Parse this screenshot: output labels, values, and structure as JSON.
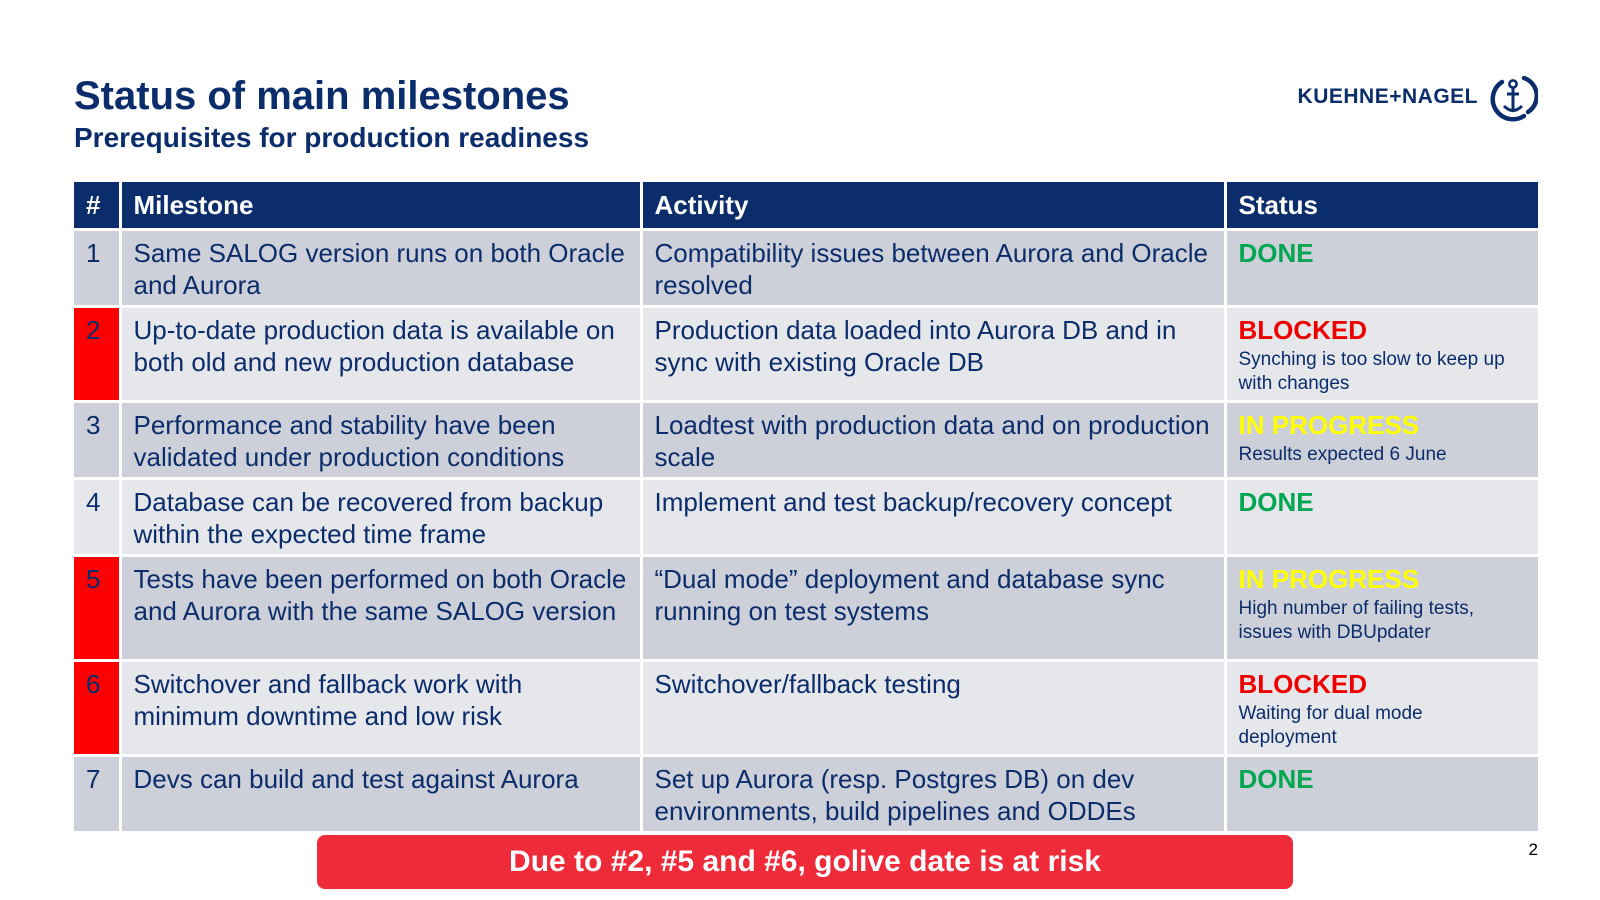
{
  "header": {
    "title": "Status of main milestones",
    "subtitle": "Prerequisites for production readiness",
    "logo_text": "KUEHNE+NAGEL"
  },
  "table": {
    "columns": [
      "#",
      "Milestone",
      "Activity",
      "Status"
    ],
    "rows": [
      {
        "num": "1",
        "milestone": "Same SALOG version runs on both Oracle and Aurora",
        "activity": "Compatibility issues between Aurora and Oracle resolved",
        "status": "DONE",
        "note": "",
        "at_risk": false
      },
      {
        "num": "2",
        "milestone": "Up-to-date production data is available on both old and new production database",
        "activity": "Production data loaded into Aurora DB and in sync with existing Oracle DB",
        "status": "BLOCKED",
        "note": "Synching is too slow to keep up with changes",
        "at_risk": true
      },
      {
        "num": "3",
        "milestone": "Performance and stability have been validated under production conditions",
        "activity": "Loadtest with production data and on production scale",
        "status": "IN PROGRESS",
        "note": "Results expected 6 June",
        "at_risk": false
      },
      {
        "num": "4",
        "milestone": "Database can be recovered from backup within the expected time frame",
        "activity": "Implement and test backup/recovery concept",
        "status": "DONE",
        "note": "",
        "at_risk": false
      },
      {
        "num": "5",
        "milestone": "Tests have been performed on both Oracle and Aurora with the same SALOG version",
        "activity": "“Dual mode” deployment and database sync running on test systems",
        "status": "IN PROGRESS",
        "note": "High number of failing tests, issues with DBUpdater",
        "at_risk": true
      },
      {
        "num": "6",
        "milestone": "Switchover and fallback work with minimum downtime and low risk",
        "activity": "Switchover/fallback testing",
        "status": "BLOCKED",
        "note": "Waiting for dual mode deployment",
        "at_risk": true
      },
      {
        "num": "7",
        "milestone": "Devs can build and test against Aurora",
        "activity": "Set up Aurora (resp. Postgres DB) on dev environments, build pipelines and ODDEs",
        "status": "DONE",
        "note": "",
        "at_risk": false
      }
    ]
  },
  "banner": "Due to #2, #5 and #6, golive date is at risk",
  "page_number": "2",
  "colors": {
    "navy": "#0b2d6b",
    "done": "#00a650",
    "blocked": "#ee0000",
    "in_progress": "#ffff00",
    "risk": "#ff0000",
    "banner": "#ef2b3a"
  },
  "icons": {
    "logo_mark": "anchor-icon"
  }
}
